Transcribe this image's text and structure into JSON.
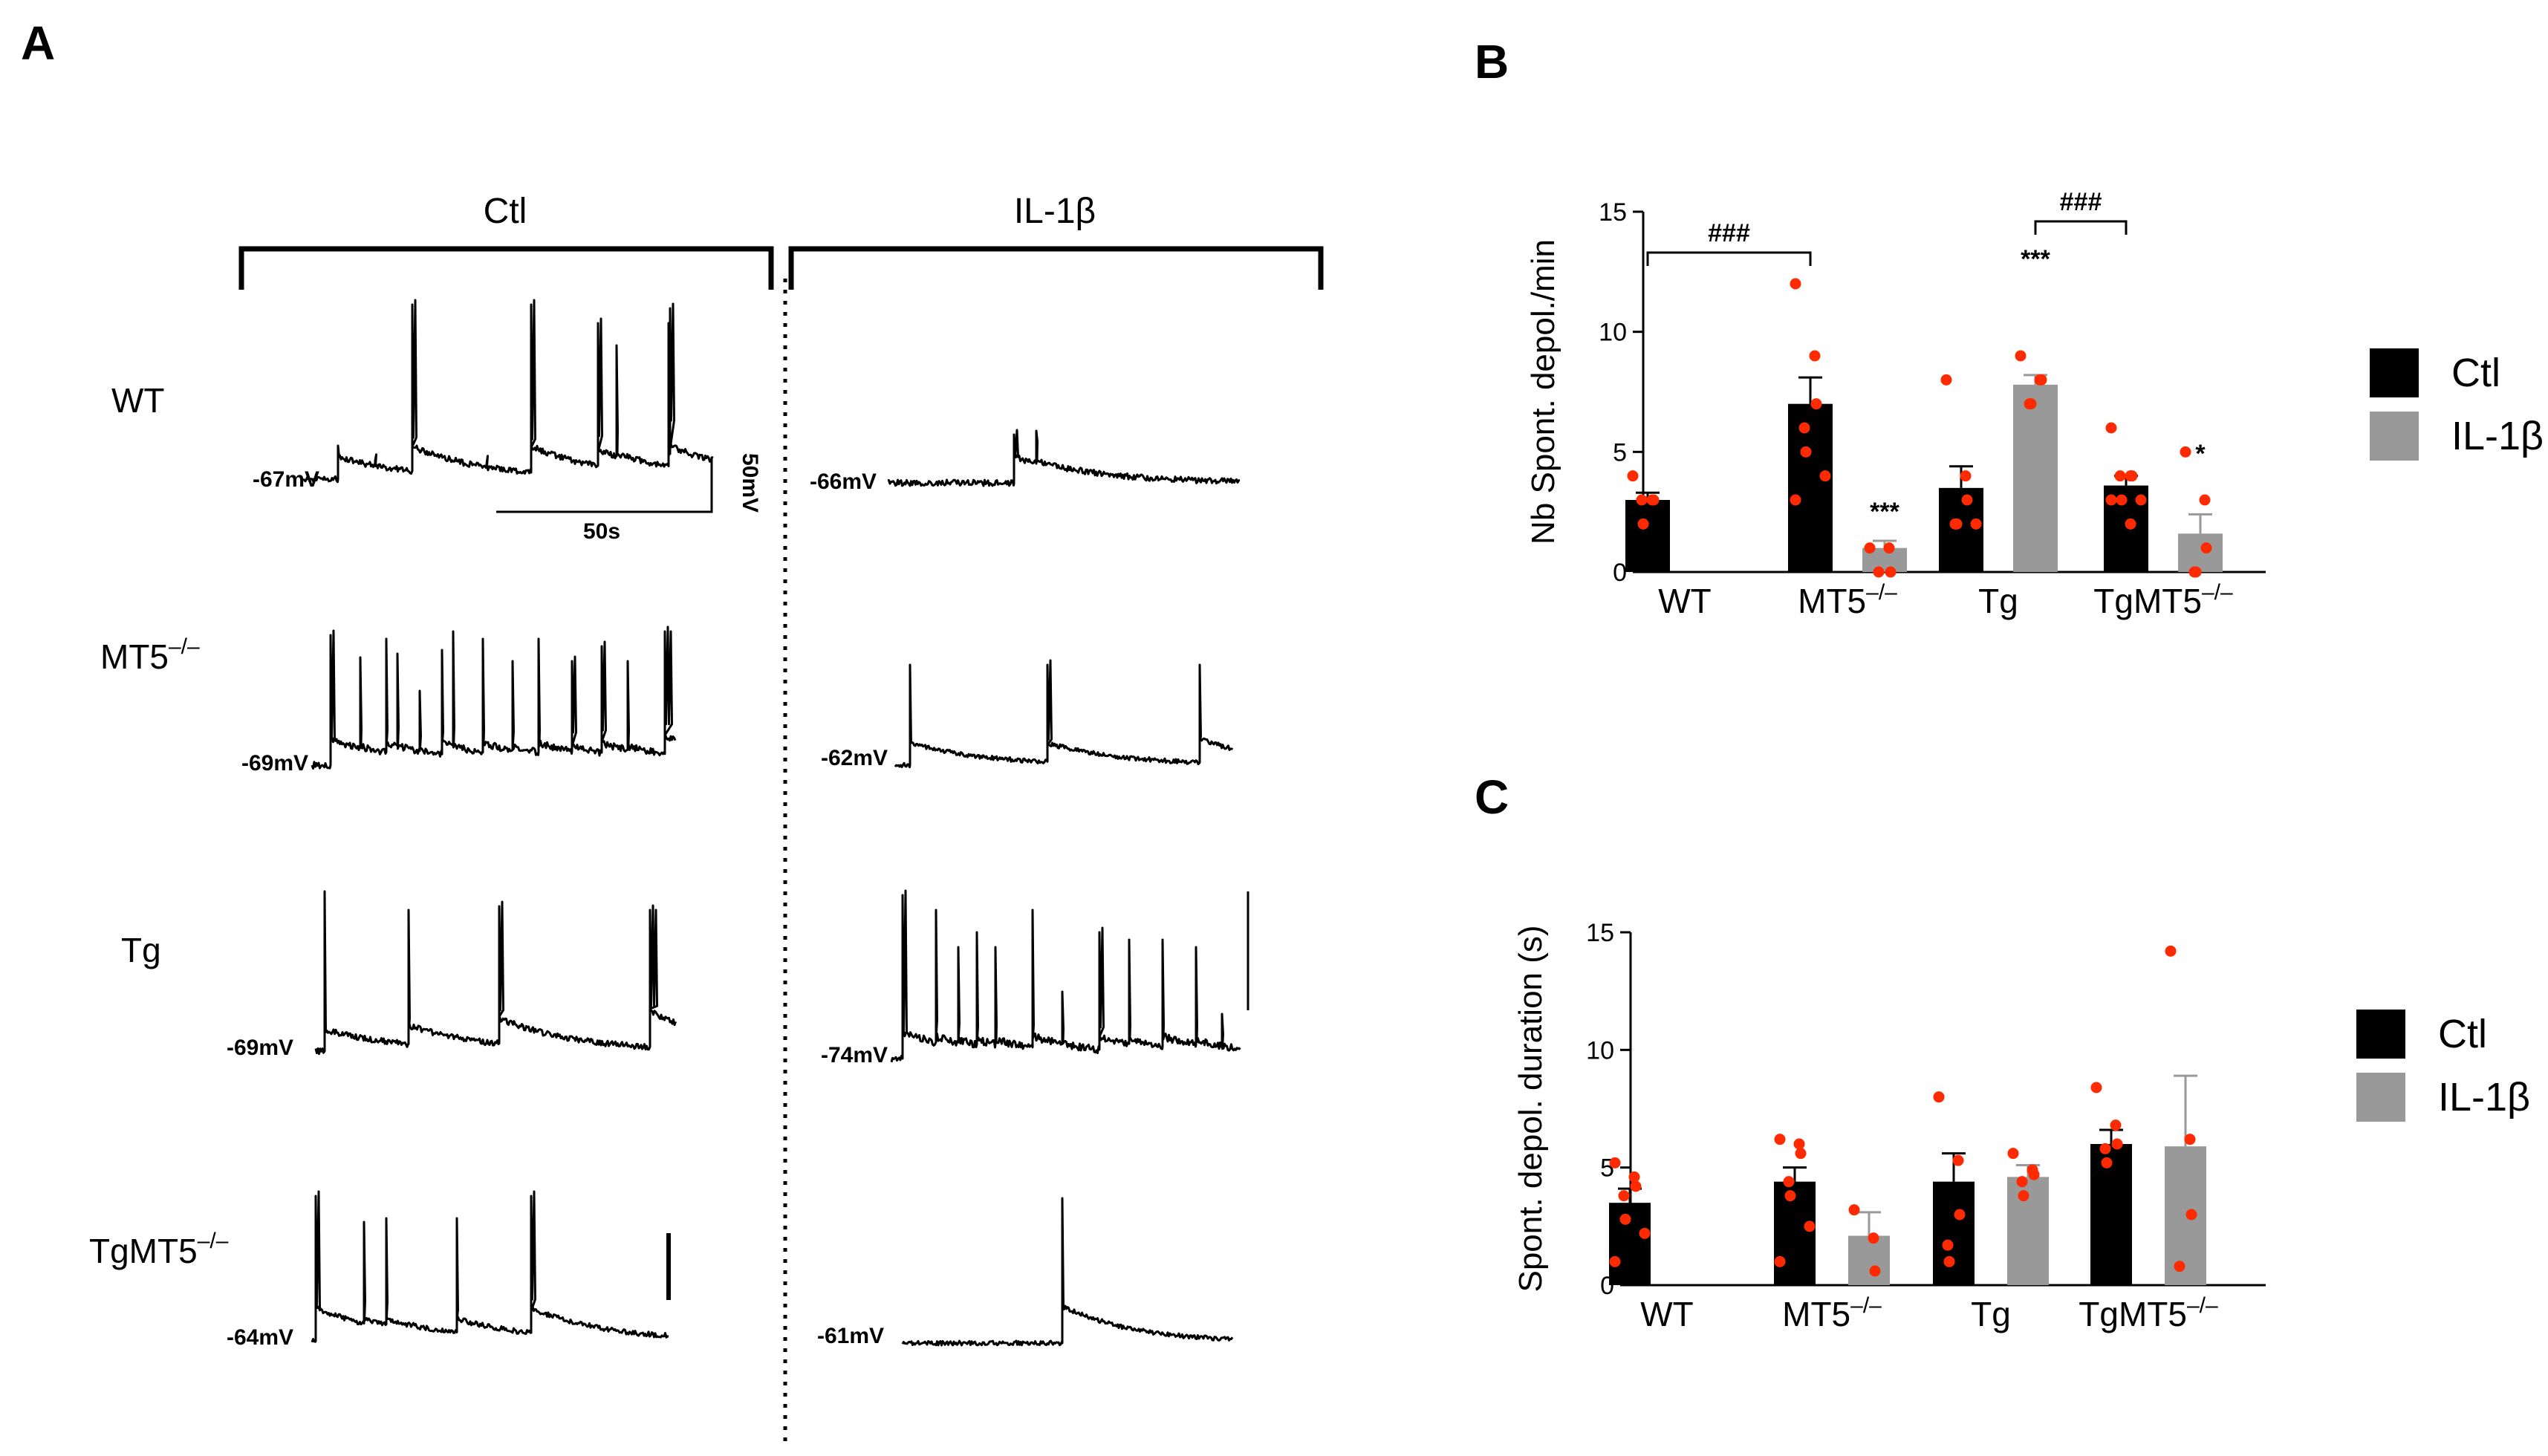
{
  "panel_a": {
    "letter": "A",
    "conditions": [
      "Ctl",
      "IL-1β"
    ],
    "rows": [
      {
        "label": "WT",
        "sup": "",
        "ctl_voltage": "-67mV",
        "il_voltage": "-66mV"
      },
      {
        "label": "MT5",
        "sup": "–/–",
        "ctl_voltage": "-69mV",
        "il_voltage": "-62mV"
      },
      {
        "label": "Tg",
        "sup": "",
        "ctl_voltage": "-69mV",
        "il_voltage": "-74mV"
      },
      {
        "label": "TgMT5",
        "sup": "–/–",
        "ctl_voltage": "-64mV",
        "il_voltage": "-61mV"
      }
    ],
    "scale_time": "50s",
    "scale_voltage": "50mV"
  },
  "chart_data": [
    {
      "panel": "B",
      "type": "bar",
      "ylabel": "Nb Spont. depol./min",
      "ylim": [
        0,
        15
      ],
      "yticks": [
        0,
        5,
        10,
        15
      ],
      "categories": [
        "WT",
        "MT5–/–",
        "Tg",
        "TgMT5–/–"
      ],
      "series": [
        {
          "name": "Ctl",
          "color": "#000000",
          "values": [
            3.0,
            7.0,
            3.5,
            3.6
          ],
          "errors": [
            0.3,
            1.1,
            0.9,
            0.4
          ],
          "points": [
            [
              4,
              3,
              3,
              3,
              2
            ],
            [
              12,
              9,
              7,
              6,
              5,
              4,
              3
            ],
            [
              8,
              4,
              3,
              2,
              2,
              2
            ],
            [
              6,
              4,
              4,
              4,
              3,
              3,
              3,
              2
            ]
          ]
        },
        {
          "name": "IL-1β",
          "color": "#999999",
          "values": [
            null,
            1.0,
            7.8,
            1.6
          ],
          "errors": [
            null,
            0.3,
            0.4,
            0.8
          ],
          "points": [
            [],
            [
              1,
              1,
              0,
              0
            ],
            [
              9,
              8,
              8,
              7,
              7
            ],
            [
              5,
              3,
              1,
              0,
              0
            ]
          ]
        }
      ],
      "annotations": [
        {
          "text": "###",
          "from": "WT",
          "to": "MT5–/–"
        },
        {
          "text": "###",
          "from": "Tg",
          "to": "TgMT5–/–"
        },
        {
          "text": "***",
          "category": "MT5–/–",
          "series": "IL-1β"
        },
        {
          "text": "***",
          "category": "Tg",
          "series": "IL-1β"
        },
        {
          "text": "*",
          "category": "TgMT5–/–",
          "series": "IL-1β"
        }
      ]
    },
    {
      "panel": "C",
      "type": "bar",
      "ylabel": "Spont. depol. duration (s)",
      "ylim": [
        0,
        15
      ],
      "yticks": [
        0,
        5,
        10,
        15
      ],
      "categories": [
        "WT",
        "MT5–/–",
        "Tg",
        "TgMT5–/–"
      ],
      "series": [
        {
          "name": "Ctl",
          "color": "#000000",
          "values": [
            3.5,
            4.4,
            4.4,
            6.0
          ],
          "errors": [
            0.6,
            0.6,
            1.2,
            0.6
          ],
          "points": [
            [
              5.2,
              4.6,
              4.2,
              3.8,
              2.8,
              2.2,
              1.0
            ],
            [
              6.2,
              6.0,
              5.6,
              4.4,
              3.8,
              2.5,
              1.0
            ],
            [
              8.0,
              5.3,
              3.0,
              1.7,
              1.0
            ],
            [
              8.4,
              6.8,
              6.0,
              5.8,
              5.2
            ]
          ]
        },
        {
          "name": "IL-1β",
          "color": "#999999",
          "values": [
            null,
            2.1,
            4.6,
            5.9
          ],
          "errors": [
            null,
            1.0,
            0.5,
            3.0
          ],
          "points": [
            [],
            [
              3.2,
              2.0,
              0.6
            ],
            [
              5.6,
              4.9,
              4.7,
              4.4,
              3.8
            ],
            [
              14.2,
              6.2,
              3.0,
              0.8
            ]
          ]
        }
      ]
    }
  ]
}
